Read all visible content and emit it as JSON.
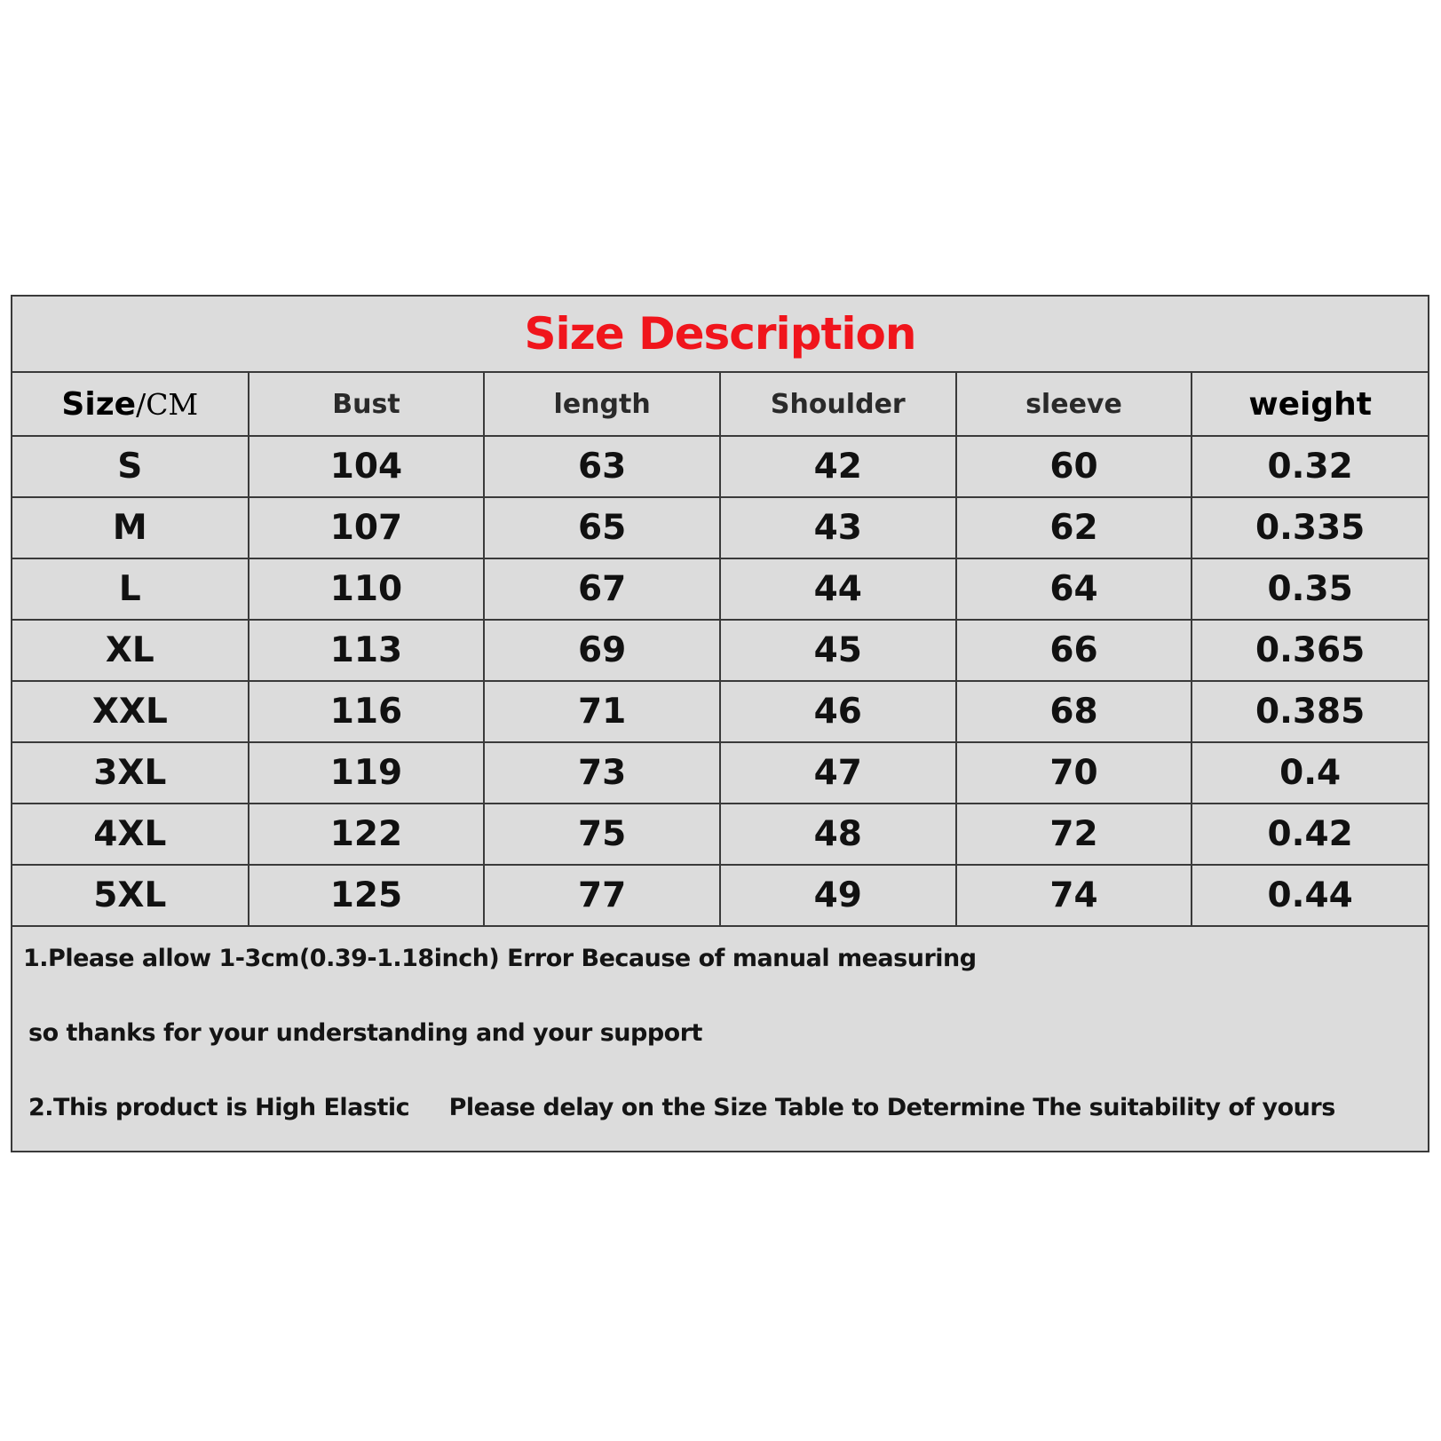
{
  "title": "Size Description",
  "table": {
    "header": {
      "size_label": "Size",
      "size_separator": "/",
      "size_unit": "CM",
      "columns": [
        "Bust",
        "length",
        "Shoulder",
        "sleeve",
        "weight"
      ]
    },
    "rows": [
      {
        "size": "S",
        "bust": "104",
        "length": "63",
        "shoulder": "42",
        "sleeve": "60",
        "weight": "0.32"
      },
      {
        "size": "M",
        "bust": "107",
        "length": "65",
        "shoulder": "43",
        "sleeve": "62",
        "weight": "0.335"
      },
      {
        "size": "L",
        "bust": "110",
        "length": "67",
        "shoulder": "44",
        "sleeve": "64",
        "weight": "0.35"
      },
      {
        "size": "XL",
        "bust": "113",
        "length": "69",
        "shoulder": "45",
        "sleeve": "66",
        "weight": "0.365"
      },
      {
        "size": "XXL",
        "bust": "116",
        "length": "71",
        "shoulder": "46",
        "sleeve": "68",
        "weight": "0.385"
      },
      {
        "size": "3XL",
        "bust": "119",
        "length": "73",
        "shoulder": "47",
        "sleeve": "70",
        "weight": "0.4"
      },
      {
        "size": "4XL",
        "bust": "122",
        "length": "75",
        "shoulder": "48",
        "sleeve": "72",
        "weight": "0.42"
      },
      {
        "size": "5XL",
        "bust": "125",
        "length": "77",
        "shoulder": "49",
        "sleeve": "74",
        "weight": "0.44"
      }
    ]
  },
  "notes": [
    "1.Please allow 1-3cm(0.39-1.18inch) Error Because of manual measuring",
    "so thanks for your understanding and your support",
    "2.This product is High Elastic     Please delay on the Size Table to Determine The suitability of yours"
  ],
  "colors": {
    "title": "#f0151c",
    "background": "#dcdcdc",
    "border": "#3a3a3a",
    "text": "#111111"
  }
}
